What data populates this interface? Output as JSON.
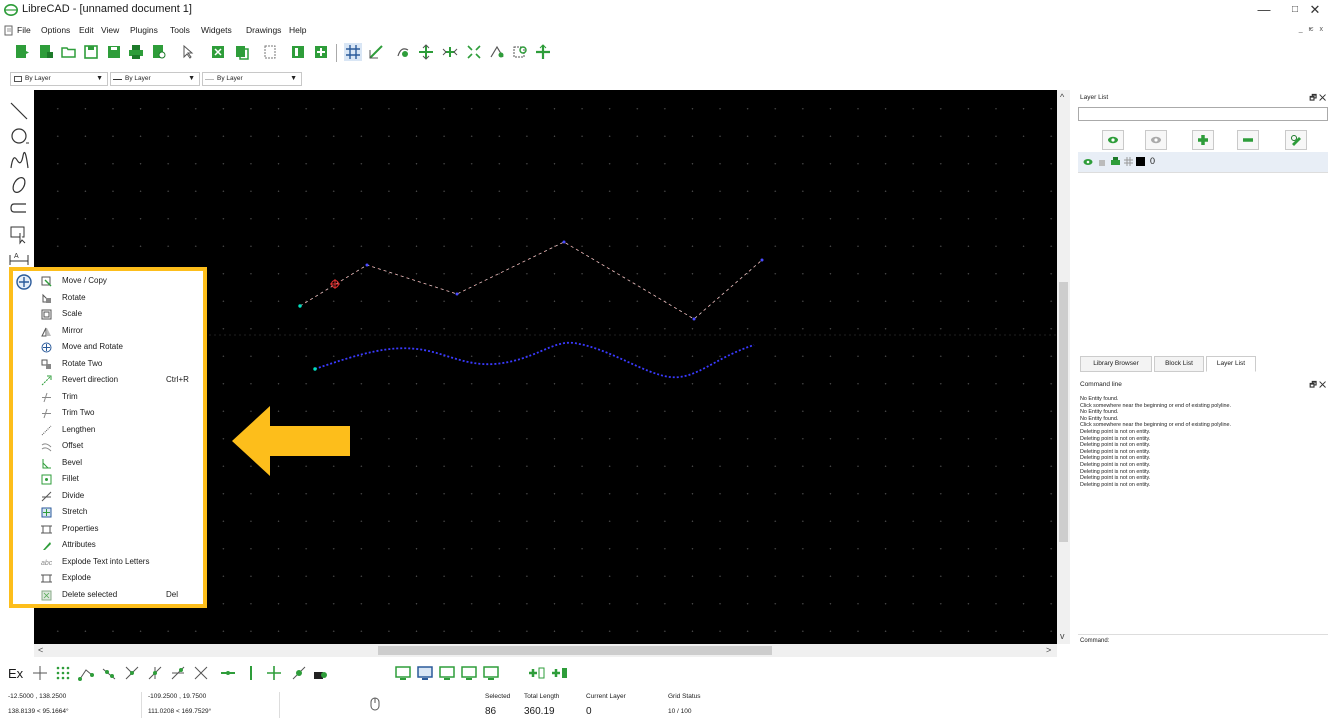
{
  "window": {
    "title": "LibreCAD - [unnamed document 1]",
    "minimize": "—",
    "maximize": "□",
    "close": "✕"
  },
  "menubar": {
    "items": [
      "File",
      "Options",
      "Edit",
      "View",
      "Plugins",
      "Tools",
      "Widgets",
      "Drawings",
      "Help"
    ],
    "mdi_controls": "_ ѥ x"
  },
  "pen_toolbar": {
    "color": "By Layer",
    "width": "By Layer",
    "linetype": "By Layer"
  },
  "left_palette": {
    "icons": [
      "line-icon",
      "circle-icon",
      "curve-icon",
      "ellipse-icon",
      "polyline-icon",
      "select-icon",
      "dimension-icon",
      "modify-icon",
      "dimension-h-icon",
      "text-icon",
      "hatch-icon",
      "image-icon",
      "block-icon",
      "point-icon"
    ],
    "text_icon_label": "A"
  },
  "context_menu": {
    "items": [
      {
        "label": "Move / Copy",
        "shortcut": "",
        "icon": "move-copy-icon"
      },
      {
        "label": "Rotate",
        "shortcut": "",
        "icon": "rotate-icon"
      },
      {
        "label": "Scale",
        "shortcut": "",
        "icon": "scale-icon"
      },
      {
        "label": "Mirror",
        "shortcut": "",
        "icon": "mirror-icon"
      },
      {
        "label": "Move and Rotate",
        "shortcut": "",
        "icon": "move-rotate-icon"
      },
      {
        "label": "Rotate Two",
        "shortcut": "",
        "icon": "rotate-two-icon"
      },
      {
        "label": "Revert direction",
        "shortcut": "Ctrl+R",
        "icon": "revert-direction-icon"
      },
      {
        "label": "Trim",
        "shortcut": "",
        "icon": "trim-icon"
      },
      {
        "label": "Trim Two",
        "shortcut": "",
        "icon": "trim-two-icon"
      },
      {
        "label": "Lengthen",
        "shortcut": "",
        "icon": "lengthen-icon"
      },
      {
        "label": "Offset",
        "shortcut": "",
        "icon": "offset-icon"
      },
      {
        "label": "Bevel",
        "shortcut": "",
        "icon": "bevel-icon"
      },
      {
        "label": "Fillet",
        "shortcut": "",
        "icon": "fillet-icon"
      },
      {
        "label": "Divide",
        "shortcut": "",
        "icon": "divide-icon"
      },
      {
        "label": "Stretch",
        "shortcut": "",
        "icon": "stretch-icon"
      },
      {
        "label": "Properties",
        "shortcut": "",
        "icon": "properties-icon"
      },
      {
        "label": "Attributes",
        "shortcut": "",
        "icon": "attributes-icon"
      },
      {
        "label": "Explode Text into Letters",
        "shortcut": "",
        "icon": "explode-text-icon"
      },
      {
        "label": "Explode",
        "shortcut": "",
        "icon": "explode-icon"
      },
      {
        "label": "Delete selected",
        "shortcut": "Del",
        "icon": "delete-icon"
      }
    ]
  },
  "layer_list": {
    "title": "Layer List",
    "filter_value": "",
    "buttons": [
      "show-all-layers-icon",
      "hide-all-layers-icon",
      "add-layer-icon",
      "remove-layer-icon",
      "edit-layer-icon"
    ],
    "layers": [
      {
        "name": "0",
        "color": "#000000"
      }
    ]
  },
  "dock_tabs": [
    "Library Browser",
    "Block List",
    "Layer List"
  ],
  "command_line": {
    "title": "Command line",
    "history": [
      "No Entity found.",
      "Click somewhere near the beginning or end of existing polyline.",
      "No Entity found.",
      "No Entity found.",
      "Click somewhere near the beginning or end of existing polyline.",
      "Deleting point is not on entity.",
      "Deleting point is not on entity.",
      "Deleting point is not on entity.",
      "Deleting point is not on entity.",
      "Deleting point is not on entity.",
      "Deleting point is not on entity.",
      "Deleting point is not on entity.",
      "Deleting point is not on entity.",
      "Deleting point is not on entity."
    ],
    "prompt": "Command:"
  },
  "snap_toolbar": {
    "ex_label": "Ex",
    "icons": [
      "snap-free-icon",
      "snap-grid-icon",
      "snap-endpoints-icon",
      "snap-on-entity-icon",
      "snap-center-icon",
      "snap-middle-icon",
      "snap-distance-icon",
      "snap-intersection-icon",
      "restrict-horizontal-icon",
      "restrict-vertical-icon",
      "restrict-orthogonal-icon",
      "relative-zero-icon",
      "lock-relative-zero-icon",
      "view-1-icon",
      "view-2-icon",
      "view-3-icon",
      "view-4-icon",
      "view-5-icon",
      "add-view-icon",
      "remove-view-icon"
    ]
  },
  "statusbar": {
    "abs_coords": "-12.5000 , 138.2500",
    "abs_polar": "138.8139 < 95.1664°",
    "rel_coords": "-109.2500 , 19.7500",
    "rel_polar": "111.0208 < 169.7529°",
    "selected_label": "Selected",
    "selected_value": "86",
    "total_length_label": "Total Length",
    "total_length_value": "360.19",
    "current_layer_label": "Current Layer",
    "current_layer_value": "0",
    "grid_status_label": "Grid Status",
    "grid_status_value": "10 / 100"
  },
  "colors": {
    "accent_border": "#FDBE1B",
    "arrow": "#FDBE1B",
    "canvas_bg": "#000000",
    "toolbar_green": "#2E9D3A",
    "polyline_red_white": "#ff7070",
    "polyline_blue": "#3a3aff"
  }
}
